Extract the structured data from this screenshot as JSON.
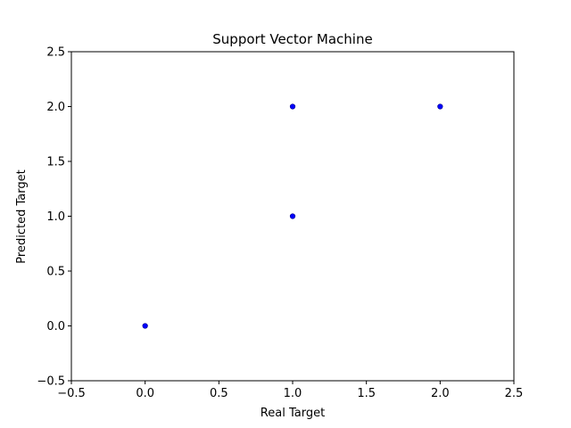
{
  "chart_data": {
    "type": "scatter",
    "title": "Support Vector Machine",
    "xlabel": "Real Target",
    "ylabel": "Predicted Target",
    "xlim": [
      -0.5,
      2.5
    ],
    "ylim": [
      -0.5,
      2.5
    ],
    "xticks": [
      -0.5,
      0.0,
      0.5,
      1.0,
      1.5,
      2.0,
      2.5
    ],
    "yticks": [
      -0.5,
      0.0,
      0.5,
      1.0,
      1.5,
      2.0,
      2.5
    ],
    "xtick_labels": [
      "−0.5",
      "0.0",
      "0.5",
      "1.0",
      "1.5",
      "2.0",
      "2.5"
    ],
    "ytick_labels": [
      "−0.5",
      "0.0",
      "0.5",
      "1.0",
      "1.5",
      "2.0",
      "2.5"
    ],
    "grid": false,
    "marker_color": "#0000ff",
    "series": [
      {
        "points": [
          {
            "x": 0,
            "y": 0
          },
          {
            "x": 1,
            "y": 1
          },
          {
            "x": 1,
            "y": 2
          },
          {
            "x": 2,
            "y": 2
          }
        ]
      }
    ]
  }
}
